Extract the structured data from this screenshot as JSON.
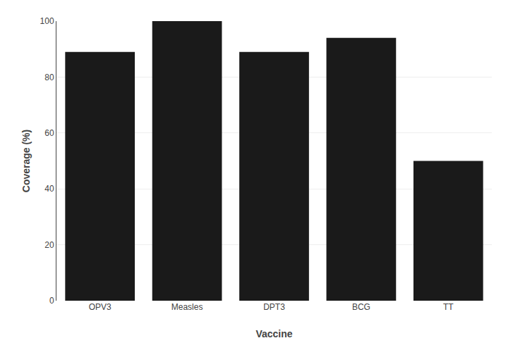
{
  "chart_data": {
    "type": "bar",
    "categories": [
      "OPV3",
      "Measles",
      "DPT3",
      "BCG",
      "TT"
    ],
    "values": [
      89,
      100,
      89,
      94,
      50
    ],
    "color": "#1a1a1a",
    "xlabel": "Vaccine",
    "ylabel": "Coverage (%)",
    "ylim": [
      0,
      100
    ],
    "yticks": [
      0,
      20,
      40,
      60,
      80,
      100
    ],
    "grid": true
  }
}
